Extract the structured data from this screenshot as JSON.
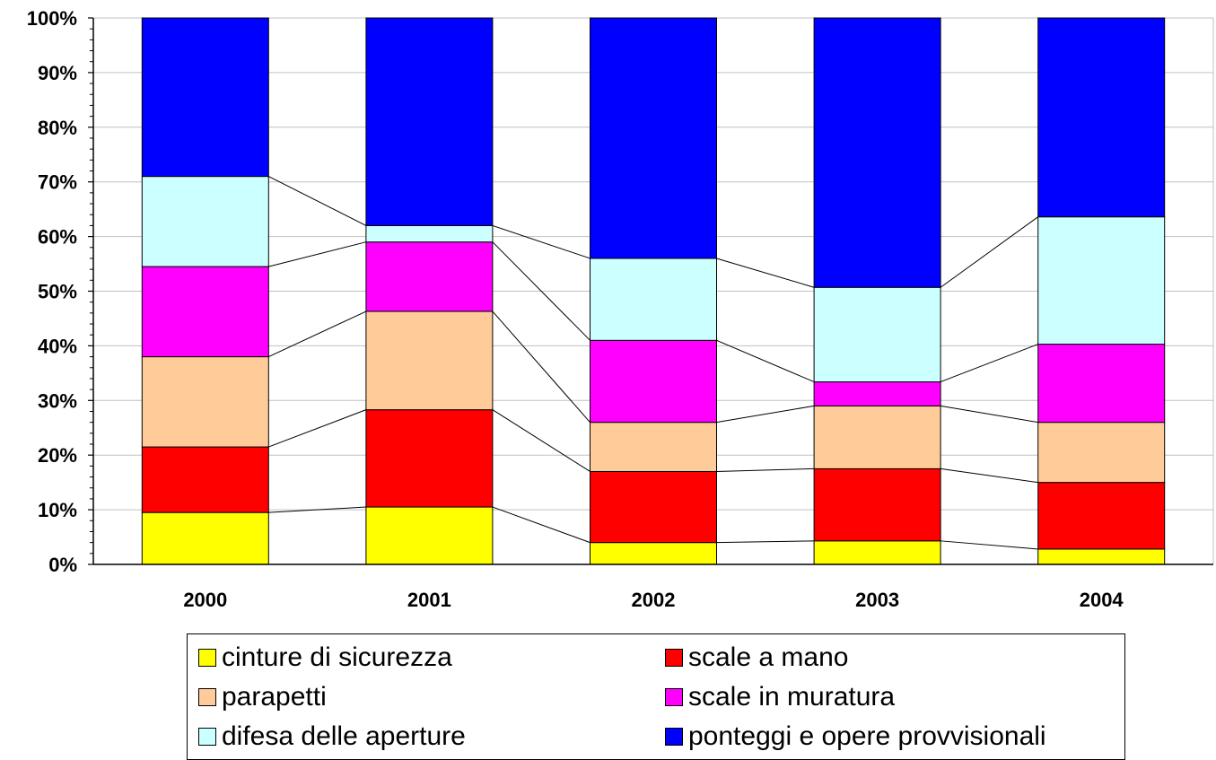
{
  "chart_data": {
    "type": "bar",
    "stacked": "percent",
    "categories": [
      "2000",
      "2001",
      "2002",
      "2003",
      "2004"
    ],
    "series": [
      {
        "name": "cinture di sicurezza",
        "color": "#FFFF00",
        "values": [
          9.5,
          10.5,
          4.0,
          4.3,
          2.8
        ]
      },
      {
        "name": "scale a mano",
        "color": "#FF0000",
        "values": [
          12.0,
          17.8,
          13.0,
          13.2,
          12.2
        ]
      },
      {
        "name": "parapetti",
        "color": "#FFCC99",
        "values": [
          16.5,
          18.0,
          9.0,
          11.5,
          11.0
        ]
      },
      {
        "name": "scale in muratura",
        "color": "#FF00FF",
        "values": [
          16.5,
          12.7,
          15.0,
          4.4,
          14.3
        ]
      },
      {
        "name": "difesa delle aperture",
        "color": "#CCFFFF",
        "values": [
          16.5,
          3.0,
          15.0,
          17.3,
          23.3
        ]
      },
      {
        "name": "ponteggi e opere provvisionali",
        "color": "#0000FF",
        "values": [
          29.0,
          38.0,
          44.0,
          49.3,
          36.4
        ]
      }
    ],
    "y_ticks": [
      "0%",
      "10%",
      "20%",
      "30%",
      "40%",
      "50%",
      "60%",
      "70%",
      "80%",
      "90%",
      "100%"
    ],
    "ylim": [
      0,
      100
    ],
    "grid": true,
    "connector_lines": true,
    "legend_position": "bottom"
  }
}
